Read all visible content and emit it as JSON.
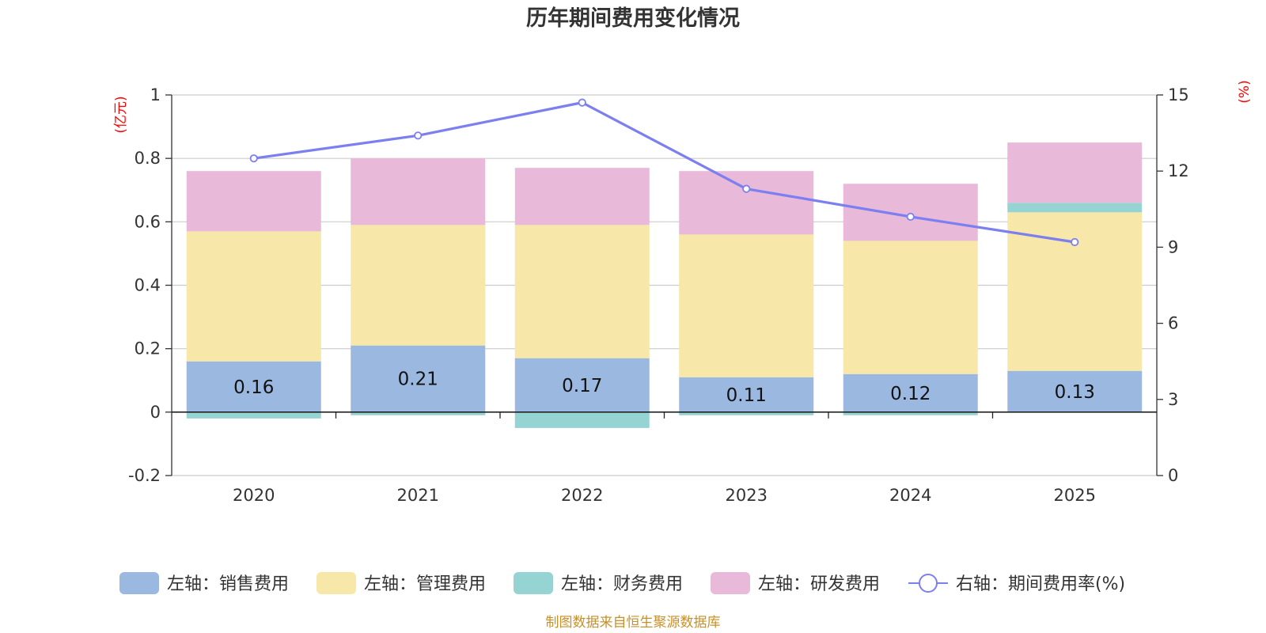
{
  "chart_data": {
    "type": "bar",
    "stacked": true,
    "title": "历年期间费用变化情况",
    "categories": [
      "2020",
      "2021",
      "2022",
      "2023",
      "2024",
      "2025"
    ],
    "left_axis": {
      "unit": "(亿元)",
      "ylim": [
        -0.2,
        1
      ],
      "ticks": [
        "-0.2",
        "0",
        "0.2",
        "0.4",
        "0.6",
        "0.8",
        "1"
      ]
    },
    "right_axis": {
      "unit": "(%)",
      "ylim": [
        0,
        15
      ],
      "ticks": [
        "0",
        "3",
        "6",
        "9",
        "12",
        "15"
      ]
    },
    "series": [
      {
        "name": "左轴：销售费用",
        "axis": "left",
        "kind": "bar",
        "color": "#9bb8e1",
        "values": [
          0.16,
          0.21,
          0.17,
          0.11,
          0.12,
          0.13
        ],
        "labels": [
          "0.16",
          "0.21",
          "0.17",
          "0.11",
          "0.12",
          "0.13"
        ]
      },
      {
        "name": "左轴：管理费用",
        "axis": "left",
        "kind": "bar",
        "color": "#f7e7a8",
        "values": [
          0.41,
          0.38,
          0.42,
          0.45,
          0.42,
          0.5
        ]
      },
      {
        "name": "左轴：财务费用",
        "axis": "left",
        "kind": "bar",
        "color": "#96d3d3",
        "values": [
          -0.02,
          -0.01,
          -0.05,
          -0.01,
          -0.01,
          0.03
        ]
      },
      {
        "name": "左轴：研发费用",
        "axis": "left",
        "kind": "bar",
        "color": "#e8b9d9",
        "values": [
          0.19,
          0.21,
          0.18,
          0.2,
          0.18,
          0.19
        ]
      },
      {
        "name": "右轴：期间费用率(%)",
        "axis": "right",
        "kind": "line",
        "color": "#7b7ff0",
        "values": [
          12.5,
          13.4,
          14.7,
          11.3,
          10.2,
          9.2
        ]
      }
    ],
    "source": "制图数据来自恒生聚源数据库"
  }
}
